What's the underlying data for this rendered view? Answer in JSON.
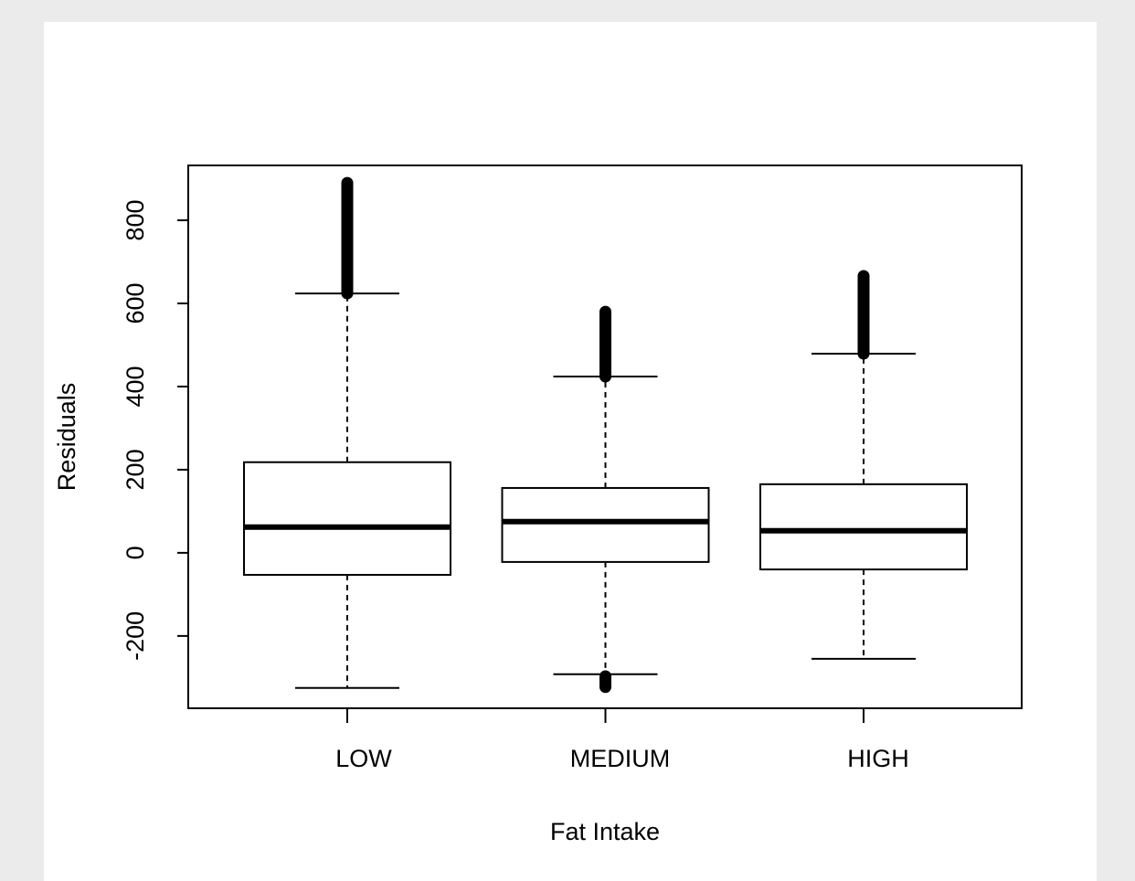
{
  "chart_data": {
    "type": "box",
    "x_label": "Fat Intake",
    "y_label": "Residuals",
    "categories": [
      "LOW",
      "MEDIUM",
      "HIGH"
    ],
    "boxes": [
      {
        "lower_whisker": -325,
        "q1": -53,
        "median": 62,
        "q3": 218,
        "upper_whisker": 624,
        "outlier_ranges": [
          [
            624,
            890
          ]
        ]
      },
      {
        "lower_whisker": -292,
        "q1": -22,
        "median": 75,
        "q3": 156,
        "upper_whisker": 424,
        "outlier_ranges": [
          [
            424,
            580
          ],
          [
            -323,
            -297
          ]
        ]
      },
      {
        "lower_whisker": -255,
        "q1": -40,
        "median": 53,
        "q3": 165,
        "upper_whisker": 479,
        "outlier_ranges": [
          [
            479,
            666
          ]
        ]
      }
    ],
    "color": "#000000",
    "ylim": [
      -374,
      932
    ],
    "yticks": [
      -200,
      0,
      200,
      400,
      600,
      800
    ]
  }
}
